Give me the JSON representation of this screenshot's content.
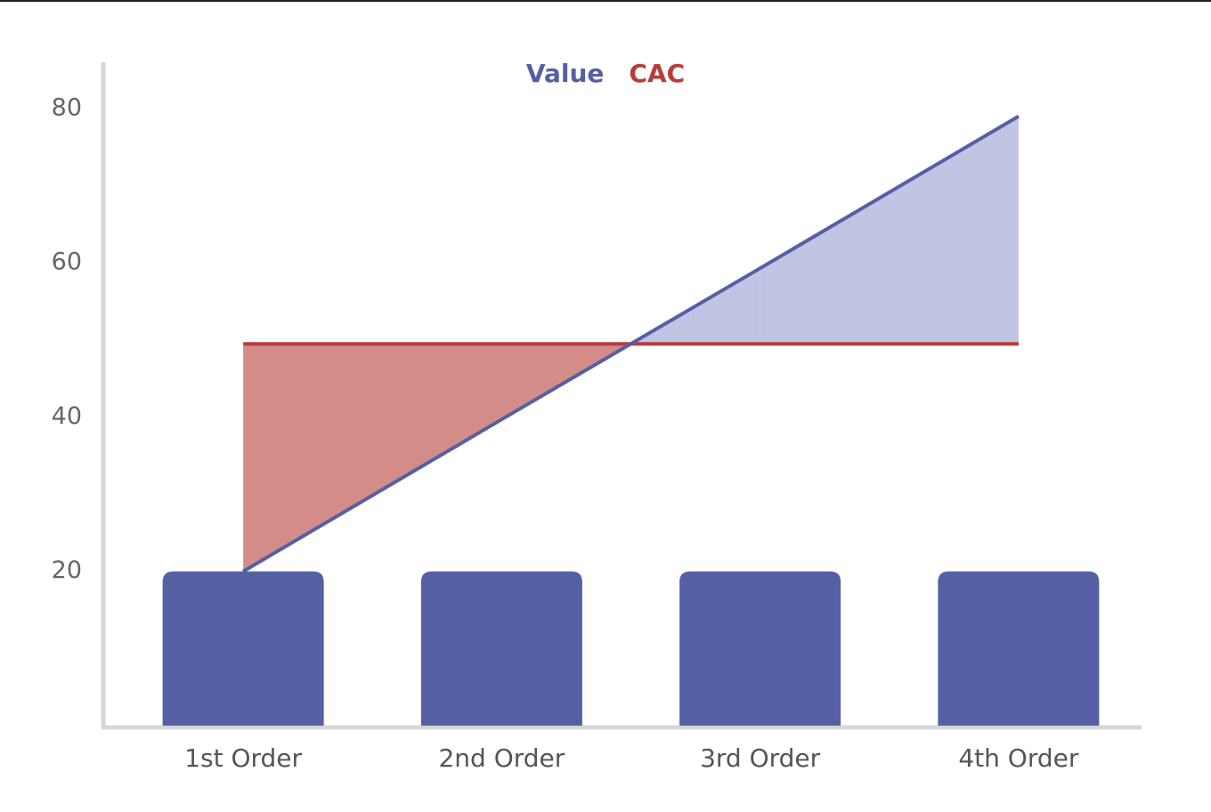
{
  "chart_data": {
    "type": "bar-line",
    "categories": [
      "1st Order",
      "2nd Order",
      "3rd Order",
      "4th Order"
    ],
    "bars": {
      "color": "#5560a4",
      "values": [
        20,
        20,
        20,
        20
      ]
    },
    "series": [
      {
        "name": "Value",
        "color": "#5560a4",
        "fill": "#c1c4e3",
        "values": [
          20,
          39.7,
          59.3,
          79
        ]
      },
      {
        "name": "CAC",
        "color": "#b83c3c",
        "fill": "#d48c89",
        "values": [
          49.5,
          49.5,
          49.5,
          49.5
        ]
      }
    ],
    "ylim": [
      0,
      86
    ],
    "yticks": [
      20,
      40,
      60,
      80
    ],
    "grid": false,
    "legend": "top"
  }
}
